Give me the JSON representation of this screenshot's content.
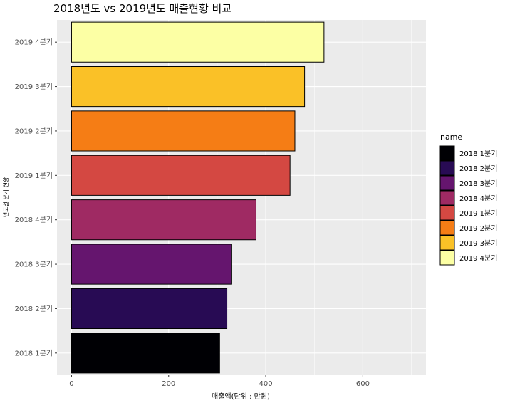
{
  "chart_data": {
    "type": "bar",
    "orientation": "horizontal",
    "title": "2018년도 vs 2019년도 매출현황 비교",
    "xlabel": "매출액(단위 : 만원)",
    "ylabel": "년도별 분기 현황",
    "categories": [
      "2018 1분기",
      "2018 2분기",
      "2018 3분기",
      "2018 4분기",
      "2019 1분기",
      "2019 2분기",
      "2019 3분기",
      "2019 4분기"
    ],
    "values": [
      305,
      320,
      330,
      380,
      450,
      460,
      480,
      520
    ],
    "colors": [
      "#000004",
      "#280B54",
      "#65156E",
      "#9F2A63",
      "#D44842",
      "#F57D15",
      "#FAC127",
      "#FCFFA4"
    ],
    "xlim": [
      -30,
      730
    ],
    "xticks": [
      0,
      200,
      400,
      600
    ],
    "grid": true,
    "legend": {
      "title": "name",
      "position": "right",
      "items": [
        "2018 1분기",
        "2018 2분기",
        "2018 3분기",
        "2018 4분기",
        "2019 1분기",
        "2019 2분기",
        "2019 3분기",
        "2019 4분기"
      ]
    }
  }
}
